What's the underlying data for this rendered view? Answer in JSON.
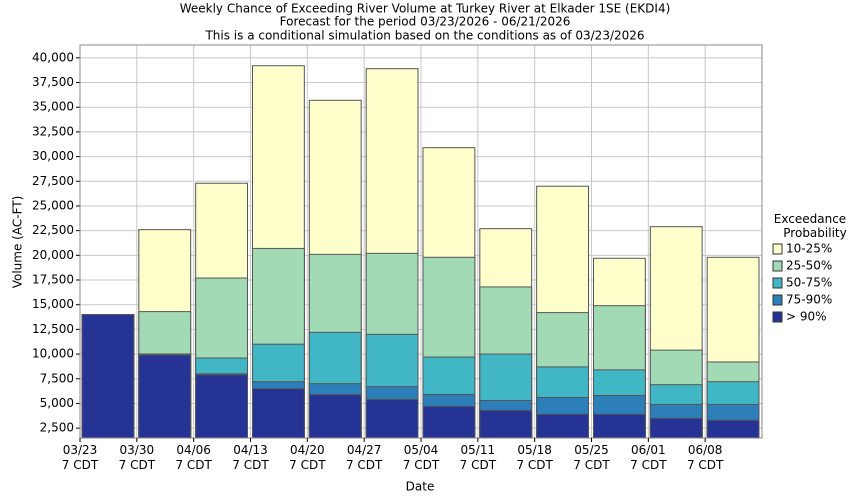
{
  "chart_data": {
    "type": "bar",
    "title": "Weekly Chance of Exceeding River Volume at Turkey River at Elkader 1SE (EKDI4)",
    "subtitles": [
      "Forecast for the period 03/23/2026 - 06/21/2026",
      "This is a conditional simulation based on the conditions as of 03/23/2026"
    ],
    "x_label": "Date",
    "y_label": "Volume (AC-FT)",
    "legend_title": "Exceedance Probability",
    "legend": "right",
    "grid": true,
    "categories": [
      "03/23\n7 CDT",
      "03/30\n7 CDT",
      "04/06\n7 CDT",
      "04/13\n7 CDT",
      "04/20\n7 CDT",
      "04/27\n7 CDT",
      "05/04\n7 CDT",
      "05/11\n7 CDT",
      "05/18\n7 CDT",
      "05/25\n7 CDT",
      "06/01\n7 CDT",
      "06/08\n7 CDT"
    ],
    "series": [
      {
        "name": "10-25%",
        "color": "#ffffcc",
        "values": [
          14000,
          22600,
          27300,
          39200,
          35700,
          38900,
          30900,
          22700,
          27000,
          19700,
          22900,
          19800
        ]
      },
      {
        "name": "25-50%",
        "color": "#a1dab4",
        "values": [
          14000,
          14300,
          17700,
          20700,
          20100,
          20200,
          19800,
          16800,
          14200,
          14900,
          10400,
          9200
        ]
      },
      {
        "name": "50-75%",
        "color": "#41b6c4",
        "values": [
          14000,
          10000,
          9600,
          11000,
          12200,
          12000,
          9700,
          10000,
          8700,
          8400,
          6900,
          7200
        ]
      },
      {
        "name": "75-90%",
        "color": "#2c7fb8",
        "values": [
          14000,
          10000,
          8000,
          7200,
          7000,
          6700,
          5900,
          5300,
          5600,
          5800,
          4900,
          4900
        ]
      },
      {
        "name": "> 90%",
        "color": "#253494",
        "values": [
          14000,
          9900,
          7900,
          6500,
          5900,
          5400,
          4700,
          4300,
          3900,
          3900,
          3500,
          3300
        ]
      }
    ],
    "ylim": [
      1500,
      41300
    ],
    "yticks": [
      {
        "value": 2500,
        "label": "2,500"
      },
      {
        "value": 5000,
        "label": "5,000"
      },
      {
        "value": 7500,
        "label": "7,500"
      },
      {
        "value": 10000,
        "label": "10,000"
      },
      {
        "value": 12500,
        "label": "12,500"
      },
      {
        "value": 15000,
        "label": "15,000"
      },
      {
        "value": 17500,
        "label": "17,500"
      },
      {
        "value": 20000,
        "label": "20,000"
      },
      {
        "value": 22500,
        "label": "22,500"
      },
      {
        "value": 25000,
        "label": "25,000"
      },
      {
        "value": 27500,
        "label": "27,500"
      },
      {
        "value": 30000,
        "label": "30,000"
      },
      {
        "value": 32500,
        "label": "32,500"
      },
      {
        "value": 35000,
        "label": "35,000"
      },
      {
        "value": 37500,
        "label": "37,500"
      },
      {
        "value": 40000,
        "label": "40,000"
      }
    ]
  }
}
